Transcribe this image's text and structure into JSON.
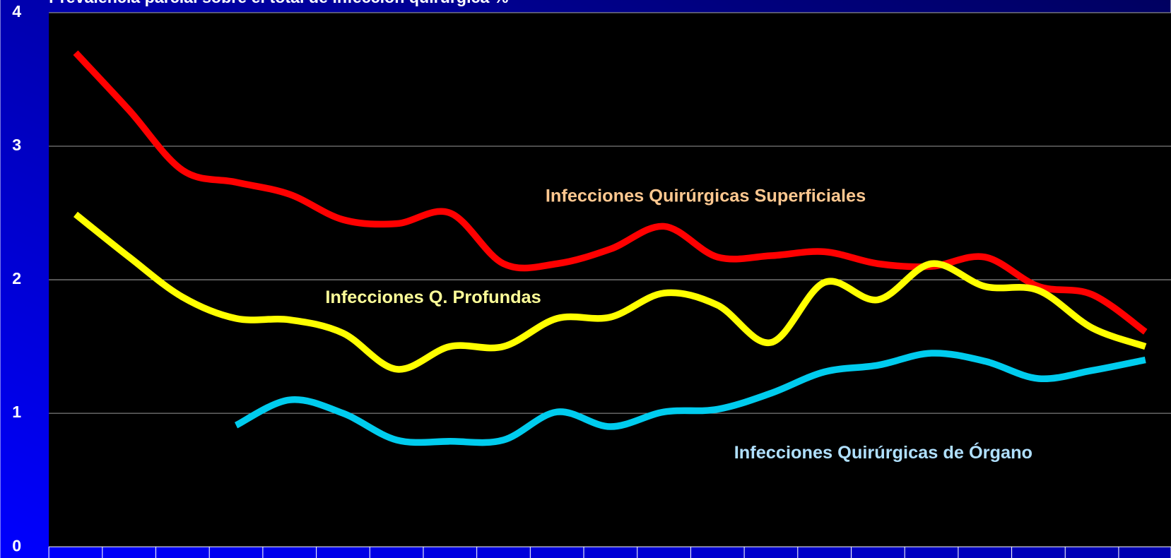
{
  "chart_data": {
    "type": "line",
    "title": "Prevalencia parcial sobre el total de infección quirúrgica %",
    "categories": [
      null,
      null,
      null,
      null,
      null,
      null,
      null,
      null,
      null,
      null,
      null,
      null,
      null,
      null,
      null,
      null,
      null,
      null,
      null,
      null,
      null
    ],
    "series": [
      {
        "name": "Infecciones Quirúrgicas Superficiales",
        "color": "#ff0000",
        "values": [
          3.7,
          3.27,
          2.82,
          2.73,
          2.64,
          2.45,
          2.42,
          2.5,
          2.12,
          2.12,
          2.23,
          2.4,
          2.17,
          2.18,
          2.21,
          2.12,
          2.1,
          2.17,
          1.95,
          1.89,
          1.61
        ]
      },
      {
        "name": "Infecciones  Q. Profundas",
        "color": "#ffff00",
        "values": [
          2.49,
          2.17,
          1.87,
          1.71,
          1.7,
          1.6,
          1.33,
          1.5,
          1.5,
          1.71,
          1.72,
          1.9,
          1.81,
          1.53,
          1.98,
          1.85,
          2.12,
          1.95,
          1.92,
          1.64,
          1.5
        ]
      },
      {
        "name": "Infecciones Quirúrgicas de Órgano",
        "color": "#00ccee",
        "values": [
          null,
          null,
          null,
          0.91,
          1.1,
          1.0,
          0.8,
          0.79,
          0.8,
          1.01,
          0.9,
          1.01,
          1.03,
          1.15,
          1.31,
          1.36,
          1.45,
          1.39,
          1.26,
          1.32,
          1.4
        ]
      }
    ],
    "label_colors": [
      "#ffc890",
      "#ffff99",
      "#b0e0ff"
    ],
    "ylim": [
      0,
      4
    ],
    "yticks": [
      0,
      1,
      2,
      3,
      4
    ],
    "grid": true
  }
}
